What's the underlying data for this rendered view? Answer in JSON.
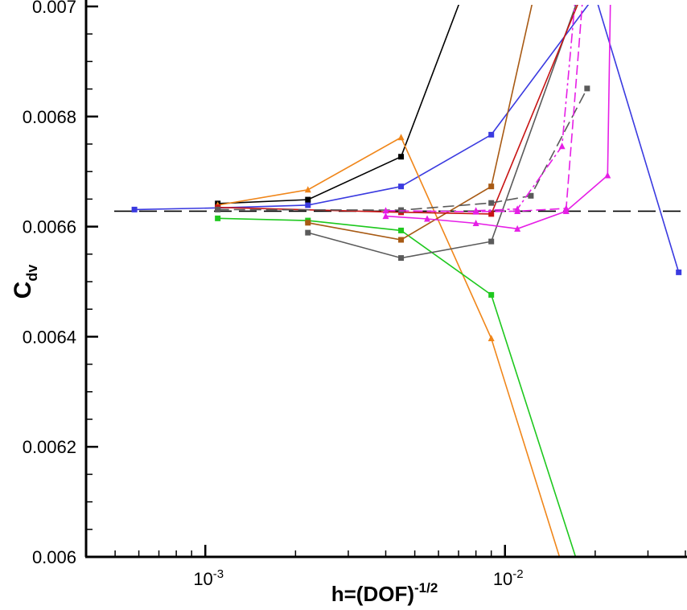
{
  "chart_data": {
    "type": "line",
    "title": "",
    "xlabel": {
      "base": "h=(DOF)",
      "sup": "-1/2"
    },
    "ylabel": {
      "base": "C",
      "sub": "dv"
    },
    "xscale": "log",
    "xlim": [
      0.0004,
      0.04
    ],
    "ylim": [
      0.006,
      0.007
    ],
    "yticks": [
      "0.006",
      "0.0062",
      "0.0064",
      "0.0066",
      "0.0068",
      "0.007"
    ],
    "yticks_values": [
      0.006,
      0.0062,
      0.0064,
      0.0066,
      0.0068,
      0.007
    ],
    "xticks": [
      {
        "value": 0.001,
        "base": "10",
        "exp": "-3"
      },
      {
        "value": 0.01,
        "base": "10",
        "exp": "-2"
      }
    ],
    "grid": false,
    "legend": "none",
    "reference_line": {
      "y": 0.006628,
      "style": "long-dash",
      "color": "#000000"
    },
    "series": [
      {
        "color": "#3a3ae0",
        "dash": "",
        "marker": "square",
        "x": [
          0.00058,
          0.0011,
          0.0022,
          0.0045,
          0.009,
          0.02,
          0.038
        ],
        "y": [
          0.006631,
          0.006634,
          0.006639,
          0.006673,
          0.006767,
          0.00702,
          0.006517
        ],
        "markers_at": [
          0,
          1,
          2,
          3,
          4,
          6
        ]
      },
      {
        "color": "#000000",
        "dash": "",
        "marker": "square",
        "x": [
          0.0011,
          0.0022,
          0.0045,
          0.0072
        ],
        "y": [
          0.006642,
          0.006649,
          0.006727,
          0.00702
        ],
        "markers_at": [
          0,
          1,
          2
        ]
      },
      {
        "color": "#f0861a",
        "dash": "",
        "marker": "triangle",
        "x": [
          0.0011,
          0.0022,
          0.0045,
          0.009,
          0.0152
        ],
        "y": [
          0.006639,
          0.006667,
          0.006762,
          0.006397,
          0.006
        ],
        "markers_at": [
          0,
          1,
          2,
          3
        ]
      },
      {
        "color": "#1ec81e",
        "dash": "",
        "marker": "square",
        "x": [
          0.0011,
          0.0022,
          0.0045,
          0.009,
          0.0172
        ],
        "y": [
          0.006615,
          0.006611,
          0.006593,
          0.006476,
          0.006
        ],
        "markers_at": [
          0,
          1,
          2,
          3
        ]
      },
      {
        "color": "#a85a14",
        "dash": "",
        "marker": "square",
        "x": [
          0.0022,
          0.0045,
          0.009,
          0.0125
        ],
        "y": [
          0.006607,
          0.006576,
          0.006673,
          0.00702
        ],
        "markers_at": [
          0,
          1,
          2
        ]
      },
      {
        "color": "#5a5a5a",
        "dash": "",
        "marker": "square",
        "x": [
          0.0022,
          0.0045,
          0.009,
          0.0177
        ],
        "y": [
          0.006589,
          0.006543,
          0.006573,
          0.00702
        ],
        "markers_at": [
          0,
          1,
          2
        ]
      },
      {
        "color": "#c81414",
        "dash": "",
        "marker": "square",
        "x": [
          0.0011,
          0.0045,
          0.009,
          0.018
        ],
        "y": [
          0.006635,
          0.006626,
          0.006623,
          0.00702
        ],
        "markers_at": [
          0,
          1,
          2
        ]
      },
      {
        "color": "#5a5a5a",
        "dash": "14,6",
        "marker": "square",
        "x": [
          0.0011,
          0.0045,
          0.009,
          0.0122,
          0.0188
        ],
        "y": [
          0.006631,
          0.00663,
          0.006643,
          0.006656,
          0.006851
        ],
        "markers_at": [
          0,
          1,
          2,
          3,
          4
        ]
      },
      {
        "color": "#e61ee6",
        "dash": "",
        "marker": "triangle",
        "x": [
          0.004,
          0.0055,
          0.008,
          0.011,
          0.016,
          0.022,
          0.0225
        ],
        "y": [
          0.006619,
          0.006614,
          0.006606,
          0.006596,
          0.006628,
          0.006693,
          0.00702
        ],
        "markers_at": [
          0,
          1,
          2,
          3,
          4,
          5
        ]
      },
      {
        "color": "#e61ee6",
        "dash": "12,5",
        "marker": "triangle",
        "x": [
          0.004,
          0.008,
          0.011,
          0.016,
          0.0182
        ],
        "y": [
          0.006629,
          0.006627,
          0.006628,
          0.006633,
          0.00702
        ],
        "markers_at": [
          0,
          1,
          2,
          3
        ]
      },
      {
        "color": "#e61ee6",
        "dash": "12,4,3,4",
        "marker": "triangle",
        "x": [
          0.008,
          0.011,
          0.0155,
          0.0172
        ],
        "y": [
          0.006629,
          0.006632,
          0.006746,
          0.00702
        ],
        "markers_at": [
          0,
          1,
          2
        ]
      }
    ]
  }
}
